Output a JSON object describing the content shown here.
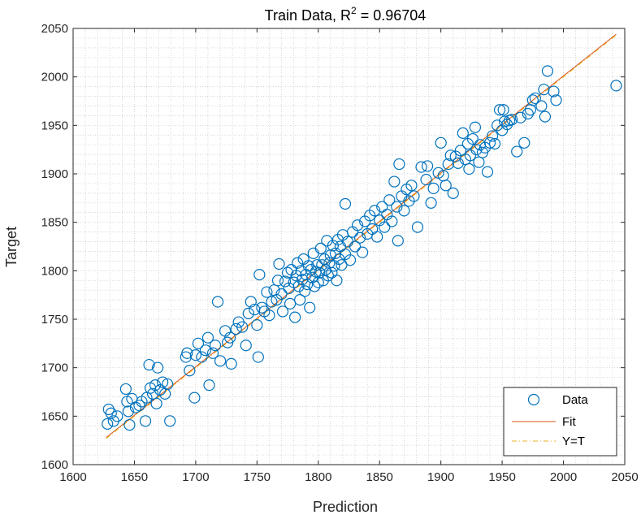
{
  "chart_data": {
    "type": "scatter",
    "title_main": "Train Data, R",
    "title_sup": "2",
    "title_rest": " = 0.96704",
    "xlabel": "Prediction",
    "ylabel": "Target",
    "xlim": [
      1600,
      2050
    ],
    "ylim": [
      1600,
      2050
    ],
    "xticks": [
      "1600",
      "1650",
      "1700",
      "1750",
      "1800",
      "1850",
      "1900",
      "1950",
      "2000",
      "2050"
    ],
    "yticks": [
      "1600",
      "1650",
      "1700",
      "1750",
      "1800",
      "1850",
      "1900",
      "1950",
      "2000",
      "2050"
    ],
    "grid": "minor dotted",
    "legend_position": "bottom-right",
    "colors": {
      "data": "#0072BD",
      "fit": "#D95319",
      "yt": "#EDB120"
    },
    "series": [
      {
        "name": "Data",
        "style": "markers",
        "points": [
          [
            1628,
            1642
          ],
          [
            1629,
            1657
          ],
          [
            1631,
            1653
          ],
          [
            1633,
            1645
          ],
          [
            1636,
            1650
          ],
          [
            1643,
            1678
          ],
          [
            1644,
            1665
          ],
          [
            1645,
            1655
          ],
          [
            1646,
            1641
          ],
          [
            1648,
            1668
          ],
          [
            1651,
            1659
          ],
          [
            1654,
            1661
          ],
          [
            1656,
            1665
          ],
          [
            1659,
            1645
          ],
          [
            1660,
            1669
          ],
          [
            1662,
            1703
          ],
          [
            1663,
            1679
          ],
          [
            1665,
            1673
          ],
          [
            1667,
            1682
          ],
          [
            1668,
            1663
          ],
          [
            1669,
            1700
          ],
          [
            1671,
            1677
          ],
          [
            1673,
            1685
          ],
          [
            1675,
            1673
          ],
          [
            1677,
            1683
          ],
          [
            1679,
            1645
          ],
          [
            1692,
            1711
          ],
          [
            1693,
            1715
          ],
          [
            1695,
            1697
          ],
          [
            1699,
            1669
          ],
          [
            1700,
            1713
          ],
          [
            1702,
            1725
          ],
          [
            1705,
            1711
          ],
          [
            1708,
            1718
          ],
          [
            1710,
            1731
          ],
          [
            1711,
            1682
          ],
          [
            1714,
            1715
          ],
          [
            1716,
            1723
          ],
          [
            1718,
            1768
          ],
          [
            1720,
            1707
          ],
          [
            1724,
            1738
          ],
          [
            1726,
            1726
          ],
          [
            1728,
            1731
          ],
          [
            1729,
            1704
          ],
          [
            1733,
            1740
          ],
          [
            1735,
            1747
          ],
          [
            1738,
            1742
          ],
          [
            1741,
            1723
          ],
          [
            1743,
            1756
          ],
          [
            1745,
            1768
          ],
          [
            1748,
            1760
          ],
          [
            1750,
            1744
          ],
          [
            1751,
            1711
          ],
          [
            1752,
            1796
          ],
          [
            1754,
            1762
          ],
          [
            1756,
            1758
          ],
          [
            1758,
            1778
          ],
          [
            1760,
            1754
          ],
          [
            1762,
            1768
          ],
          [
            1764,
            1780
          ],
          [
            1766,
            1770
          ],
          [
            1767,
            1790
          ],
          [
            1768,
            1807
          ],
          [
            1770,
            1776
          ],
          [
            1771,
            1758
          ],
          [
            1773,
            1789
          ],
          [
            1775,
            1798
          ],
          [
            1776,
            1782
          ],
          [
            1777,
            1766
          ],
          [
            1778,
            1801
          ],
          [
            1780,
            1788
          ],
          [
            1781,
            1752
          ],
          [
            1782,
            1795
          ],
          [
            1783,
            1808
          ],
          [
            1784,
            1784
          ],
          [
            1785,
            1770
          ],
          [
            1786,
            1800
          ],
          [
            1787,
            1791
          ],
          [
            1788,
            1812
          ],
          [
            1789,
            1779
          ],
          [
            1790,
            1796
          ],
          [
            1791,
            1786
          ],
          [
            1792,
            1805
          ],
          [
            1793,
            1762
          ],
          [
            1794,
            1801
          ],
          [
            1795,
            1793
          ],
          [
            1796,
            1818
          ],
          [
            1797,
            1784
          ],
          [
            1798,
            1799
          ],
          [
            1799,
            1806
          ],
          [
            1800,
            1788
          ],
          [
            1801,
            1798
          ],
          [
            1802,
            1823
          ],
          [
            1803,
            1806
          ],
          [
            1804,
            1790
          ],
          [
            1805,
            1812
          ],
          [
            1806,
            1801
          ],
          [
            1807,
            1831
          ],
          [
            1808,
            1795
          ],
          [
            1809,
            1808
          ],
          [
            1810,
            1816
          ],
          [
            1811,
            1798
          ],
          [
            1812,
            1826
          ],
          [
            1813,
            1805
          ],
          [
            1814,
            1818
          ],
          [
            1815,
            1790
          ],
          [
            1816,
            1832
          ],
          [
            1817,
            1812
          ],
          [
            1818,
            1825
          ],
          [
            1819,
            1806
          ],
          [
            1820,
            1837
          ],
          [
            1822,
            1817
          ],
          [
            1822,
            1869
          ],
          [
            1824,
            1830
          ],
          [
            1826,
            1811
          ],
          [
            1828,
            1840
          ],
          [
            1830,
            1825
          ],
          [
            1832,
            1847
          ],
          [
            1834,
            1834
          ],
          [
            1836,
            1819
          ],
          [
            1838,
            1851
          ],
          [
            1840,
            1838
          ],
          [
            1842,
            1857
          ],
          [
            1844,
            1843
          ],
          [
            1846,
            1862
          ],
          [
            1848,
            1835
          ],
          [
            1850,
            1852
          ],
          [
            1852,
            1866
          ],
          [
            1854,
            1845
          ],
          [
            1856,
            1858
          ],
          [
            1858,
            1873
          ],
          [
            1860,
            1851
          ],
          [
            1862,
            1892
          ],
          [
            1864,
            1866
          ],
          [
            1865,
            1831
          ],
          [
            1866,
            1910
          ],
          [
            1868,
            1877
          ],
          [
            1870,
            1862
          ],
          [
            1872,
            1884
          ],
          [
            1874,
            1872
          ],
          [
            1876,
            1888
          ],
          [
            1878,
            1877
          ],
          [
            1881,
            1845
          ],
          [
            1884,
            1907
          ],
          [
            1888,
            1894
          ],
          [
            1889,
            1908
          ],
          [
            1892,
            1870
          ],
          [
            1894,
            1885
          ],
          [
            1898,
            1901
          ],
          [
            1900,
            1932
          ],
          [
            1902,
            1898
          ],
          [
            1904,
            1888
          ],
          [
            1906,
            1910
          ],
          [
            1908,
            1919
          ],
          [
            1910,
            1880
          ],
          [
            1912,
            1918
          ],
          [
            1914,
            1911
          ],
          [
            1916,
            1924
          ],
          [
            1918,
            1942
          ],
          [
            1920,
            1915
          ],
          [
            1922,
            1931
          ],
          [
            1923,
            1905
          ],
          [
            1924,
            1919
          ],
          [
            1926,
            1936
          ],
          [
            1928,
            1948
          ],
          [
            1929,
            1925
          ],
          [
            1931,
            1912
          ],
          [
            1932,
            1930
          ],
          [
            1934,
            1922
          ],
          [
            1936,
            1927
          ],
          [
            1938,
            1902
          ],
          [
            1940,
            1932
          ],
          [
            1942,
            1939
          ],
          [
            1944,
            1931
          ],
          [
            1946,
            1950
          ],
          [
            1948,
            1966
          ],
          [
            1950,
            1945
          ],
          [
            1951,
            1966
          ],
          [
            1952,
            1954
          ],
          [
            1954,
            1951
          ],
          [
            1956,
            1955
          ],
          [
            1958,
            1956
          ],
          [
            1962,
            1923
          ],
          [
            1965,
            1958
          ],
          [
            1968,
            1932
          ],
          [
            1971,
            1962
          ],
          [
            1973,
            1966
          ],
          [
            1975,
            1976
          ],
          [
            1977,
            1978
          ],
          [
            1982,
            1970
          ],
          [
            1984,
            1987
          ],
          [
            1985,
            1959
          ],
          [
            1987,
            2006
          ],
          [
            1992,
            1985
          ],
          [
            1994,
            1976
          ],
          [
            2043,
            1991
          ]
        ]
      },
      {
        "name": "Fit",
        "style": "line",
        "x": [
          1627,
          2043
        ],
        "y": [
          1628,
          2044
        ]
      },
      {
        "name": "Y=T",
        "style": "dashdot",
        "x": [
          1627,
          2043
        ],
        "y": [
          1627,
          2043
        ]
      }
    ]
  }
}
